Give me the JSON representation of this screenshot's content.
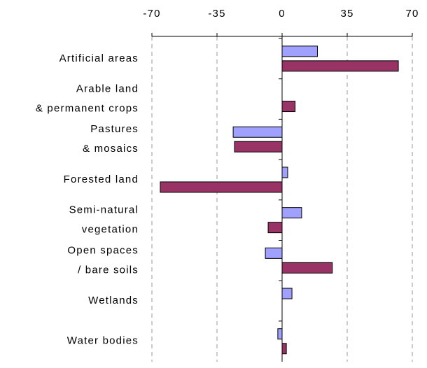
{
  "chart_data": {
    "type": "bar",
    "orientation": "horizontal",
    "categories": [
      [
        "Artificial areas"
      ],
      [
        "Arable land",
        "& permanent crops"
      ],
      [
        "Pastures",
        "& mosaics"
      ],
      [
        "Forested land"
      ],
      [
        "Semi-natural",
        "vegetation"
      ],
      [
        "Open spaces",
        "/ bare soils"
      ],
      [
        "Wetlands"
      ],
      [
        "Water bodies"
      ]
    ],
    "series": [
      {
        "color": "#a0a0ff",
        "values": [
          19,
          0,
          -26.3,
          3,
          10.5,
          -9,
          5.3,
          -2.3
        ]
      },
      {
        "color": "#993366",
        "values": [
          62.5,
          7,
          -25.6,
          -65.5,
          -7.5,
          27,
          0,
          2.3
        ]
      }
    ],
    "xlim": [
      -70,
      70
    ],
    "xticks": [
      -70,
      -35,
      0,
      35,
      70
    ],
    "grid": true
  }
}
